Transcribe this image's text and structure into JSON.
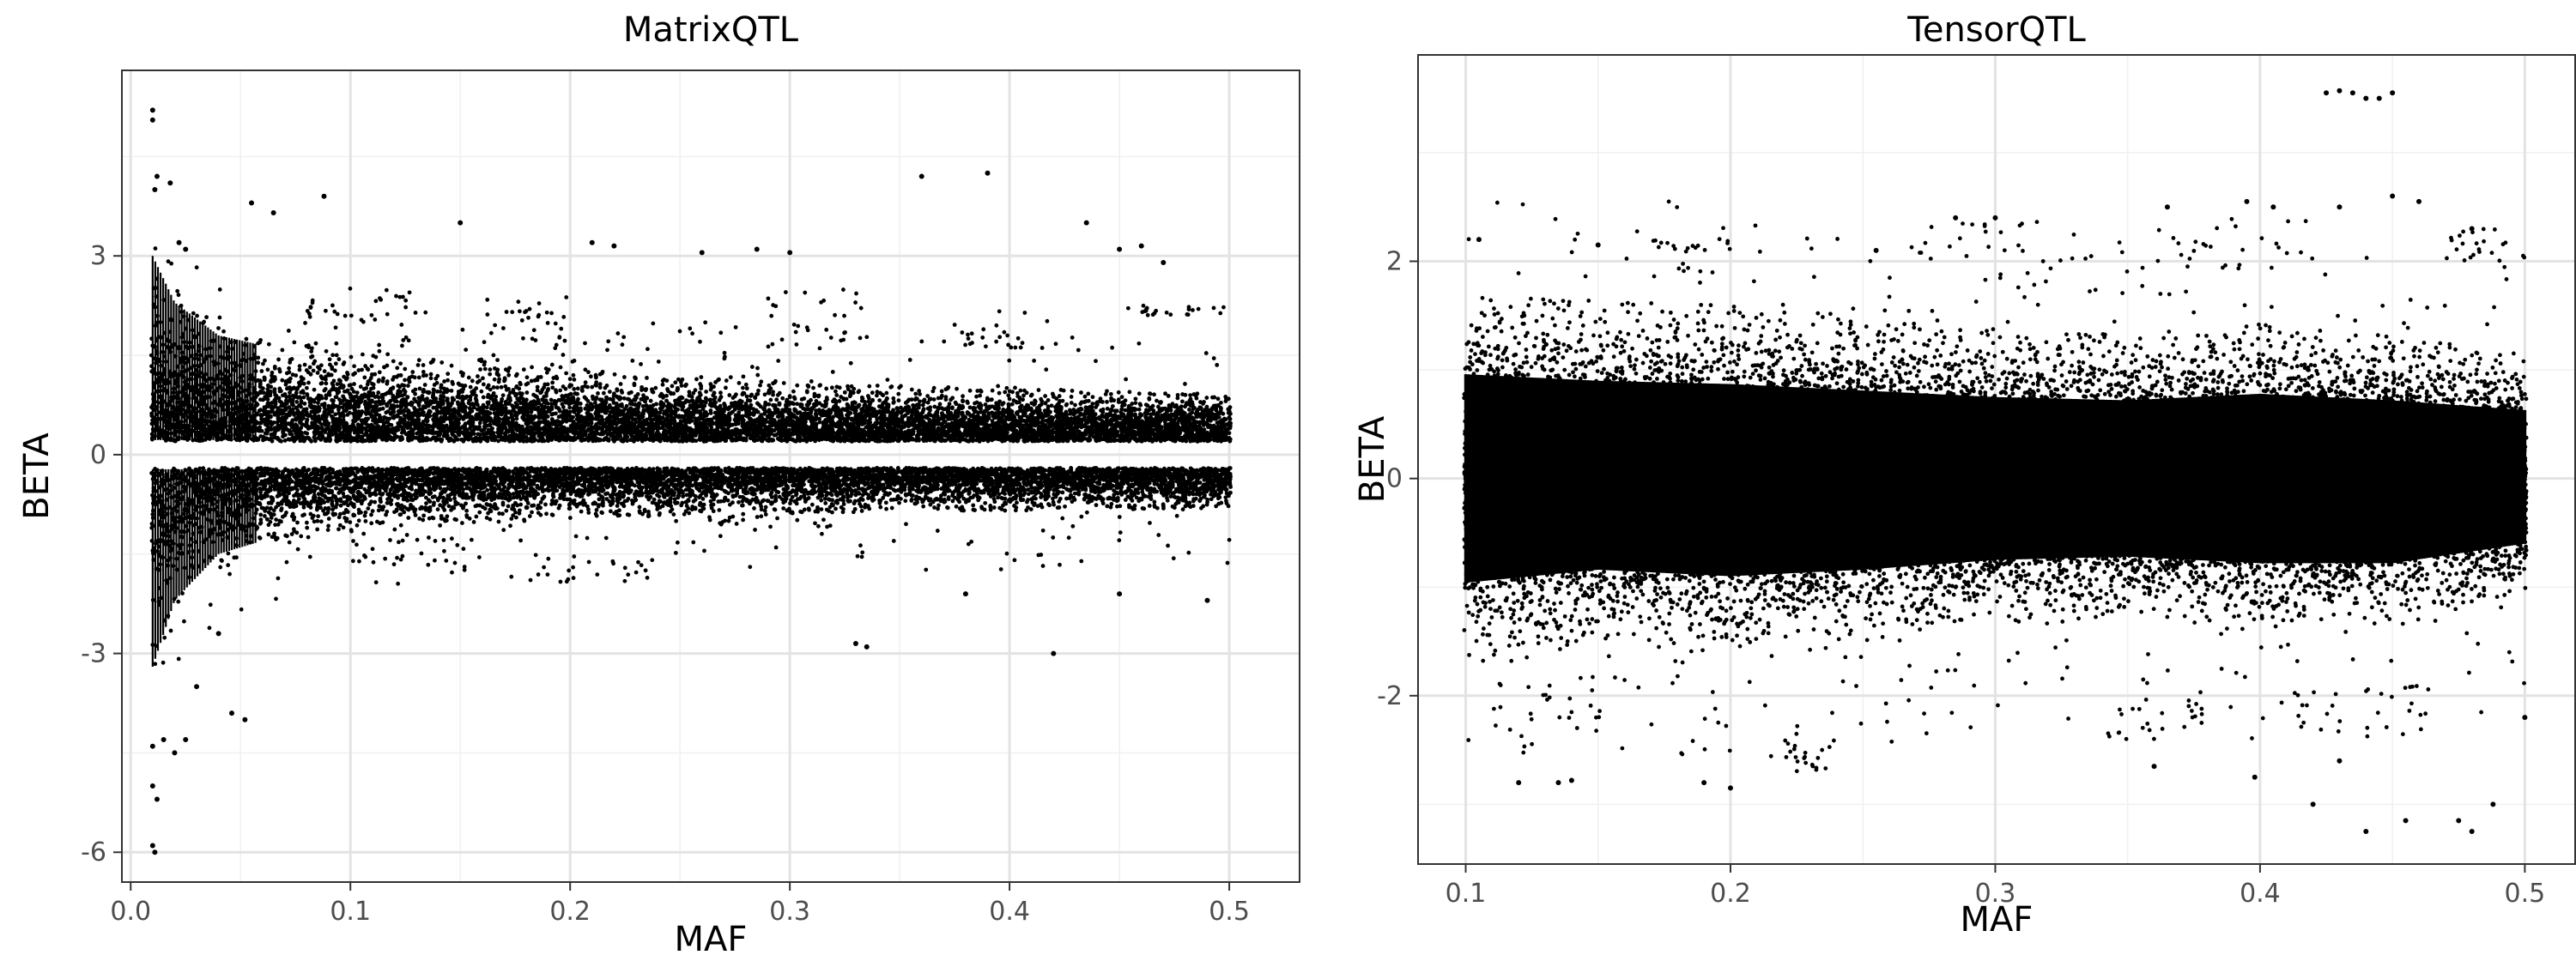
{
  "chart_data": [
    {
      "type": "scatter",
      "title": "MatrixQTL",
      "xlabel": "MAF",
      "ylabel": "BETA",
      "xlim": [
        -0.004,
        0.532
      ],
      "ylim": [
        -6.45,
        5.8
      ],
      "xticks": [
        0.0,
        0.1,
        0.2,
        0.3,
        0.4,
        0.5
      ],
      "xtick_labels": [
        "0.0",
        "0.1",
        "0.2",
        "0.3",
        "0.4",
        "0.5"
      ],
      "yticks": [
        3,
        0,
        -3,
        -6
      ],
      "ytick_labels": [
        "3",
        "0",
        "-3",
        "-6"
      ],
      "grid": true,
      "point_color": "#000000",
      "density": {
        "maf_min": 0.01,
        "maf_max": 0.5,
        "gap_near_zero": 0.2,
        "envelope": [
          {
            "x": 0.01,
            "upper": 3.0,
            "lower": -3.2
          },
          {
            "x": 0.02,
            "upper": 2.3,
            "lower": -2.2
          },
          {
            "x": 0.04,
            "upper": 1.8,
            "lower": -1.5
          },
          {
            "x": 0.08,
            "upper": 1.5,
            "lower": -1.1
          },
          {
            "x": 0.15,
            "upper": 1.3,
            "lower": -0.9
          },
          {
            "x": 0.25,
            "upper": 1.05,
            "lower": -0.8
          },
          {
            "x": 0.35,
            "upper": 0.9,
            "lower": -0.75
          },
          {
            "x": 0.5,
            "upper": 0.8,
            "lower": -0.7
          }
        ]
      },
      "points": [
        {
          "x": 0.01,
          "y": 5.2
        },
        {
          "x": 0.01,
          "y": 5.05
        },
        {
          "x": 0.012,
          "y": 4.2
        },
        {
          "x": 0.011,
          "y": 4.0
        },
        {
          "x": 0.018,
          "y": 4.1
        },
        {
          "x": 0.022,
          "y": 3.2
        },
        {
          "x": 0.025,
          "y": 3.1
        },
        {
          "x": 0.055,
          "y": 3.8
        },
        {
          "x": 0.065,
          "y": 3.65
        },
        {
          "x": 0.088,
          "y": 3.9
        },
        {
          "x": 0.15,
          "y": 3.5
        },
        {
          "x": 0.21,
          "y": 3.2
        },
        {
          "x": 0.22,
          "y": 3.15
        },
        {
          "x": 0.26,
          "y": 3.05
        },
        {
          "x": 0.285,
          "y": 3.1
        },
        {
          "x": 0.3,
          "y": 3.05
        },
        {
          "x": 0.36,
          "y": 4.2
        },
        {
          "x": 0.39,
          "y": 4.25
        },
        {
          "x": 0.435,
          "y": 3.5
        },
        {
          "x": 0.45,
          "y": 3.1
        },
        {
          "x": 0.46,
          "y": 3.15
        },
        {
          "x": 0.47,
          "y": 2.9
        },
        {
          "x": 0.01,
          "y": -4.4
        },
        {
          "x": 0.01,
          "y": -5.0
        },
        {
          "x": 0.012,
          "y": -5.2
        },
        {
          "x": 0.01,
          "y": -5.9
        },
        {
          "x": 0.011,
          "y": -6.0
        },
        {
          "x": 0.015,
          "y": -4.3
        },
        {
          "x": 0.02,
          "y": -4.5
        },
        {
          "x": 0.025,
          "y": -4.3
        },
        {
          "x": 0.046,
          "y": -3.9
        },
        {
          "x": 0.052,
          "y": -4.0
        },
        {
          "x": 0.33,
          "y": -2.85
        },
        {
          "x": 0.335,
          "y": -2.9
        },
        {
          "x": 0.42,
          "y": -3.0
        },
        {
          "x": 0.38,
          "y": -2.1
        },
        {
          "x": 0.45,
          "y": -2.1
        },
        {
          "x": 0.49,
          "y": -2.2
        },
        {
          "x": 0.03,
          "y": -3.5
        },
        {
          "x": 0.04,
          "y": -2.7
        }
      ],
      "clusters": [
        {
          "x": [
            0.18,
            0.24
          ],
          "y": [
            -1.95,
            -1.5
          ]
        },
        {
          "x": [
            0.375,
            0.44
          ],
          "y": [
            1.6,
            2.2
          ]
        },
        {
          "x": [
            0.45,
            0.5
          ],
          "y": [
            2.1,
            2.25
          ]
        },
        {
          "x": [
            0.08,
            0.13
          ],
          "y": [
            2.0,
            2.6
          ]
        },
        {
          "x": [
            0.16,
            0.2
          ],
          "y": [
            1.6,
            2.4
          ]
        },
        {
          "x": [
            0.29,
            0.34
          ],
          "y": [
            1.7,
            2.5
          ]
        },
        {
          "x": [
            0.26,
            0.32
          ],
          "y": [
            -1.1,
            -0.8
          ]
        },
        {
          "x": [
            0.1,
            0.16
          ],
          "y": [
            -1.7,
            -1.2
          ]
        }
      ]
    },
    {
      "type": "scatter",
      "title": "TensorQTL",
      "xlabel": "MAF",
      "ylabel": "BETA",
      "xlim": [
        0.082,
        0.519
      ],
      "ylim": [
        -3.55,
        3.9
      ],
      "xticks": [
        0.1,
        0.2,
        0.3,
        0.4,
        0.5
      ],
      "xtick_labels": [
        "0.1",
        "0.2",
        "0.3",
        "0.4",
        "0.5"
      ],
      "yticks": [
        2,
        0,
        -2
      ],
      "ytick_labels": [
        "2",
        "0",
        "-2"
      ],
      "grid": true,
      "point_color": "#000000",
      "density": {
        "maf_min": 0.1,
        "maf_max": 0.5,
        "core": 0.6,
        "envelope": [
          {
            "x": 0.1,
            "upper": 1.6,
            "lower": -1.6
          },
          {
            "x": 0.15,
            "upper": 1.5,
            "lower": -1.4
          },
          {
            "x": 0.2,
            "upper": 1.45,
            "lower": -1.5
          },
          {
            "x": 0.25,
            "upper": 1.35,
            "lower": -1.4
          },
          {
            "x": 0.3,
            "upper": 1.25,
            "lower": -1.25
          },
          {
            "x": 0.35,
            "upper": 1.2,
            "lower": -1.2
          },
          {
            "x": 0.4,
            "upper": 1.3,
            "lower": -1.3
          },
          {
            "x": 0.45,
            "upper": 1.2,
            "lower": -1.3
          },
          {
            "x": 0.5,
            "upper": 1.05,
            "lower": -1.0
          }
        ]
      },
      "points": [
        {
          "x": 0.425,
          "y": 3.55
        },
        {
          "x": 0.43,
          "y": 3.57
        },
        {
          "x": 0.435,
          "y": 3.55
        },
        {
          "x": 0.44,
          "y": 3.5
        },
        {
          "x": 0.445,
          "y": 3.5
        },
        {
          "x": 0.45,
          "y": 3.55
        },
        {
          "x": 0.43,
          "y": 2.5
        },
        {
          "x": 0.45,
          "y": 2.6
        },
        {
          "x": 0.46,
          "y": 2.55
        },
        {
          "x": 0.395,
          "y": 2.55
        },
        {
          "x": 0.405,
          "y": 2.5
        },
        {
          "x": 0.365,
          "y": 2.5
        },
        {
          "x": 0.105,
          "y": 2.2
        },
        {
          "x": 0.15,
          "y": 2.15
        },
        {
          "x": 0.285,
          "y": 2.4
        },
        {
          "x": 0.3,
          "y": 2.4
        },
        {
          "x": 0.255,
          "y": 2.1
        },
        {
          "x": 0.48,
          "y": 2.3
        },
        {
          "x": 0.44,
          "y": -3.25
        },
        {
          "x": 0.455,
          "y": -3.15
        },
        {
          "x": 0.475,
          "y": -3.15
        },
        {
          "x": 0.48,
          "y": -3.25
        },
        {
          "x": 0.488,
          "y": -3.0
        },
        {
          "x": 0.12,
          "y": -2.8
        },
        {
          "x": 0.135,
          "y": -2.8
        },
        {
          "x": 0.14,
          "y": -2.78
        },
        {
          "x": 0.19,
          "y": -2.8
        },
        {
          "x": 0.2,
          "y": -2.85
        },
        {
          "x": 0.42,
          "y": -3.0
        },
        {
          "x": 0.43,
          "y": -2.6
        },
        {
          "x": 0.36,
          "y": -2.65
        },
        {
          "x": 0.5,
          "y": -2.2
        },
        {
          "x": 0.398,
          "y": -2.75
        }
      ],
      "clusters": [
        {
          "x": [
            0.22,
            0.24
          ],
          "y": [
            -2.7,
            -2.4
          ]
        },
        {
          "x": [
            0.27,
            0.33
          ],
          "y": [
            1.8,
            2.4
          ]
        },
        {
          "x": [
            0.17,
            0.2
          ],
          "y": [
            1.8,
            2.2
          ]
        },
        {
          "x": [
            0.36,
            0.42
          ],
          "y": [
            1.9,
            2.4
          ]
        },
        {
          "x": [
            0.47,
            0.5
          ],
          "y": [
            2.0,
            2.3
          ]
        },
        {
          "x": [
            0.34,
            0.38
          ],
          "y": [
            -2.4,
            -2.0
          ]
        },
        {
          "x": [
            0.11,
            0.16
          ],
          "y": [
            -2.3,
            -1.8
          ]
        },
        {
          "x": [
            0.4,
            0.47
          ],
          "y": [
            -2.4,
            -1.9
          ]
        }
      ]
    }
  ]
}
